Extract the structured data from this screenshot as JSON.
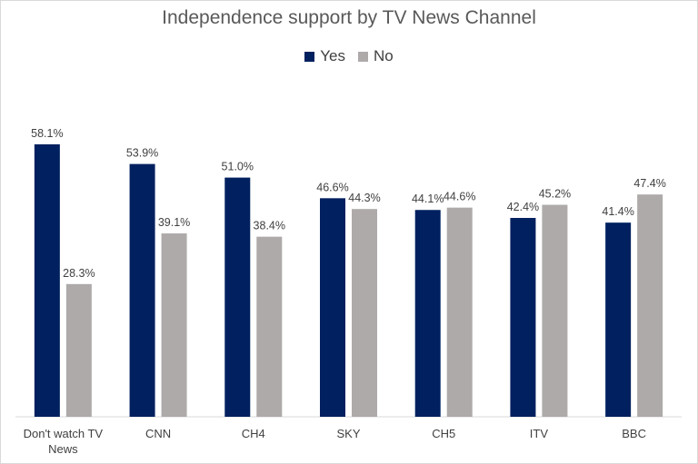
{
  "colors": {
    "yes": "#002060",
    "no": "#AEAAAA",
    "axis": "#D9D9D9",
    "text": "#404040"
  },
  "chart_data": {
    "type": "bar",
    "title": "Independence support by TV News Channel",
    "categories": [
      "Don't watch TV News",
      "CNN",
      "CH4",
      "SKY",
      "CH5",
      "ITV",
      "BBC"
    ],
    "series": [
      {
        "name": "Yes",
        "values": [
          58.1,
          53.9,
          51.0,
          46.6,
          44.1,
          42.4,
          41.4
        ]
      },
      {
        "name": "No",
        "values": [
          28.3,
          39.1,
          38.4,
          44.3,
          44.6,
          45.2,
          47.4
        ]
      }
    ],
    "data_labels": [
      [
        "58.1%",
        "53.9%",
        "51.0%",
        "46.6%",
        "44.1%",
        "42.4%",
        "41.4%"
      ],
      [
        "28.3%",
        "39.1%",
        "38.4%",
        "44.3%",
        "44.6%",
        "45.2%",
        "47.4%"
      ]
    ],
    "ylim": [
      0,
      70
    ],
    "grid": false,
    "legend_position": "top-center"
  }
}
